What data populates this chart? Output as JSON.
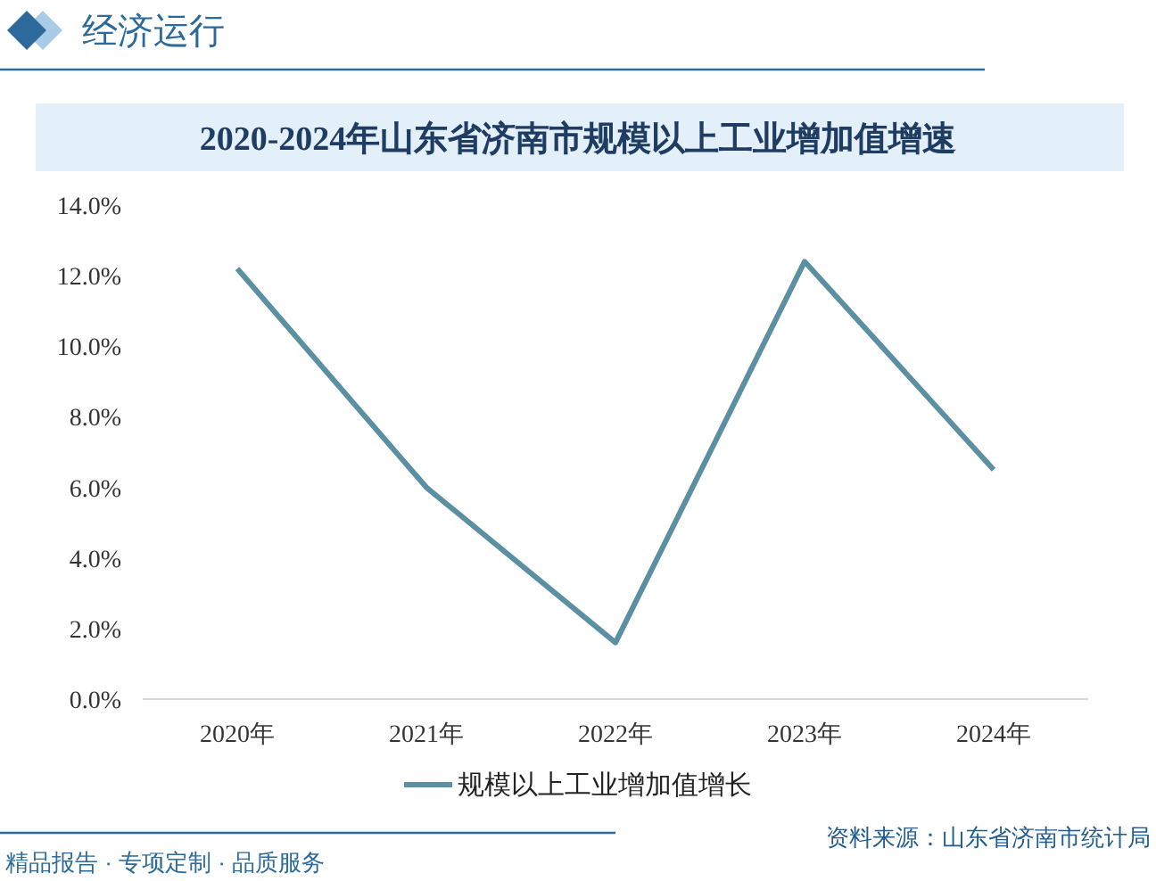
{
  "chart_data": {
    "type": "line",
    "title": "2020-2024年山东省济南市规模以上工业增加值增速",
    "categories": [
      "2020年",
      "2021年",
      "2022年",
      "2023年",
      "2024年"
    ],
    "series": [
      {
        "name": "规模以上工业增加值增长",
        "color": "#5b8fa2",
        "values": [
          12.2,
          6.0,
          1.6,
          12.4,
          6.5
        ]
      }
    ],
    "ylim": [
      0,
      14
    ],
    "yticks": [
      {
        "value": 0,
        "label": "0.0%"
      },
      {
        "value": 2,
        "label": "2.0%"
      },
      {
        "value": 4,
        "label": "4.0%"
      },
      {
        "value": 6,
        "label": "6.0%"
      },
      {
        "value": 8,
        "label": "8.0%"
      },
      {
        "value": 10,
        "label": "10.0%"
      },
      {
        "value": 12,
        "label": "12.0%"
      },
      {
        "value": 14,
        "label": "14.0%"
      }
    ],
    "legend": "bottom",
    "annotations": [
      "经济运行",
      "资料来源：山东省济南市统计局",
      "精品报告 · 专项定制 · 品质服务"
    ]
  }
}
